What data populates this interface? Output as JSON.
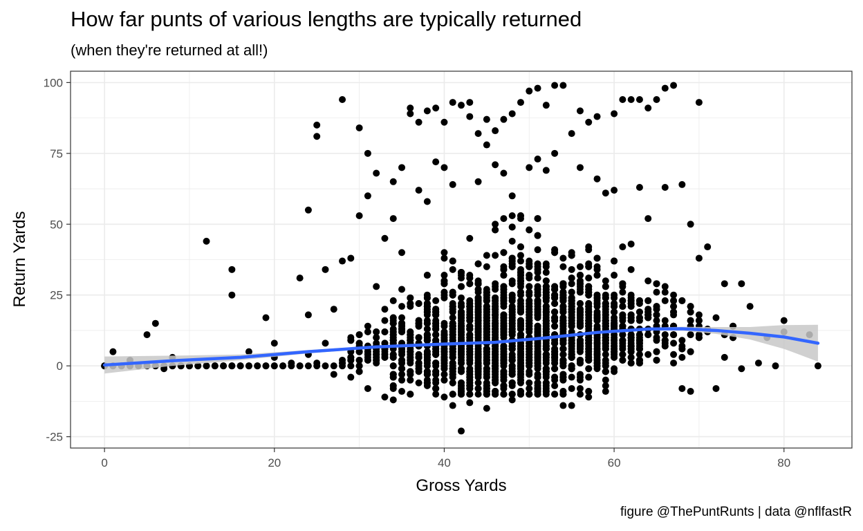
{
  "chart_data": {
    "type": "scatter",
    "title": "How far punts of various lengths are typically returned",
    "subtitle": "(when they're returned at all!)",
    "caption": "figure @ThePuntRunts | data @nflfastR",
    "xlabel": "Gross Yards",
    "ylabel": "Return Yards",
    "xlim": [
      -4,
      88
    ],
    "ylim": [
      -29,
      104
    ],
    "x_ticks": [
      0,
      20,
      40,
      60,
      80
    ],
    "y_ticks": [
      -25,
      0,
      25,
      50,
      75,
      100
    ],
    "x_tick_labels": [
      "0",
      "20",
      "40",
      "60",
      "80"
    ],
    "y_tick_labels": [
      "-25",
      "0",
      "25",
      "50",
      "75",
      "100"
    ],
    "grid": true,
    "point_color": "#000000",
    "points_x": [
      0,
      1,
      1,
      2,
      3,
      3,
      4,
      5,
      5,
      6,
      6,
      7,
      8,
      8,
      9,
      10,
      11,
      12,
      12,
      13,
      14,
      15,
      15,
      15,
      16,
      17,
      17,
      18,
      19,
      19,
      20,
      20,
      20,
      21,
      22,
      23,
      23,
      24,
      24,
      25,
      25,
      25,
      26,
      26,
      27,
      27,
      28,
      28,
      28,
      29,
      29,
      30,
      30,
      31,
      31,
      31,
      32,
      32,
      33,
      33,
      34,
      34,
      34,
      35,
      35,
      36,
      36,
      36,
      37,
      37,
      38,
      38,
      38,
      39,
      39,
      40,
      40,
      40,
      41,
      41,
      41,
      42,
      42,
      43,
      43,
      43,
      44,
      44,
      45,
      45,
      45,
      46,
      46,
      47,
      47,
      48,
      48,
      48,
      49,
      49,
      50,
      50,
      51,
      51,
      51,
      52,
      52,
      53,
      53,
      54,
      54,
      55,
      55,
      56,
      56,
      57,
      57,
      58,
      58,
      59,
      59,
      60,
      60,
      61,
      61,
      62,
      62,
      63,
      63,
      64,
      64,
      65,
      65,
      66,
      66,
      67,
      67,
      68,
      68,
      69,
      69,
      70,
      70,
      71,
      72,
      72,
      73,
      73,
      74,
      75,
      75,
      76,
      77,
      78,
      79,
      80,
      80,
      83,
      84
    ],
    "points_y": [
      0,
      0,
      5,
      0,
      0,
      2,
      0,
      11,
      0,
      15,
      0,
      -1,
      3,
      0,
      0,
      0,
      0,
      44,
      0,
      0,
      0,
      34,
      25,
      0,
      0,
      5,
      0,
      0,
      17,
      0,
      8,
      0,
      3,
      0,
      1,
      31,
      0,
      55,
      18,
      85,
      81,
      1,
      34,
      8,
      20,
      -3,
      37,
      94,
      2,
      38,
      -4,
      84,
      53,
      75,
      60,
      -8,
      68,
      28,
      45,
      -11,
      65,
      52,
      -12,
      70,
      40,
      89,
      91,
      -10,
      86,
      62,
      90,
      58,
      -5,
      91,
      72,
      86,
      70,
      -11,
      93,
      64,
      -14,
      92,
      -23,
      93,
      88,
      -13,
      82,
      65,
      87,
      78,
      -15,
      83,
      71,
      87,
      68,
      -12,
      89,
      60,
      93,
      -9,
      97,
      70,
      98,
      73,
      -7,
      92,
      69,
      99,
      75,
      -14,
      99,
      82,
      -14,
      90,
      70,
      -11,
      86,
      66,
      88,
      61,
      -9,
      89,
      62,
      94,
      42,
      94,
      43,
      94,
      63,
      91,
      52,
      94,
      26,
      98,
      63,
      99,
      25,
      64,
      -8,
      50,
      -9,
      93,
      38,
      42,
      -8,
      17,
      29,
      3,
      14,
      -1,
      29,
      21,
      1,
      10,
      0,
      16,
      12,
      11,
      0
    ],
    "dense_region": {
      "x_range": [
        20,
        76
      ],
      "y_mean_note": "",
      "y_spread": [
        -10,
        45
      ]
    },
    "trend": {
      "color": "#3366ff",
      "band_color": "#c8c8c8",
      "x": [
        0,
        8,
        16,
        24,
        32,
        40,
        46,
        52,
        58,
        64,
        68,
        72,
        76,
        80,
        84
      ],
      "y": [
        0.3,
        1.8,
        3,
        5,
        6.7,
        7.7,
        8.3,
        9.9,
        11.8,
        13,
        13.1,
        12.5,
        11.5,
        10.2,
        8
      ],
      "band_halfwidth": [
        3,
        1.8,
        1,
        0.6,
        0.4,
        0.3,
        0.3,
        0.3,
        0.3,
        0.5,
        0.7,
        1.2,
        2.2,
        4.2,
        6.5
      ]
    }
  }
}
